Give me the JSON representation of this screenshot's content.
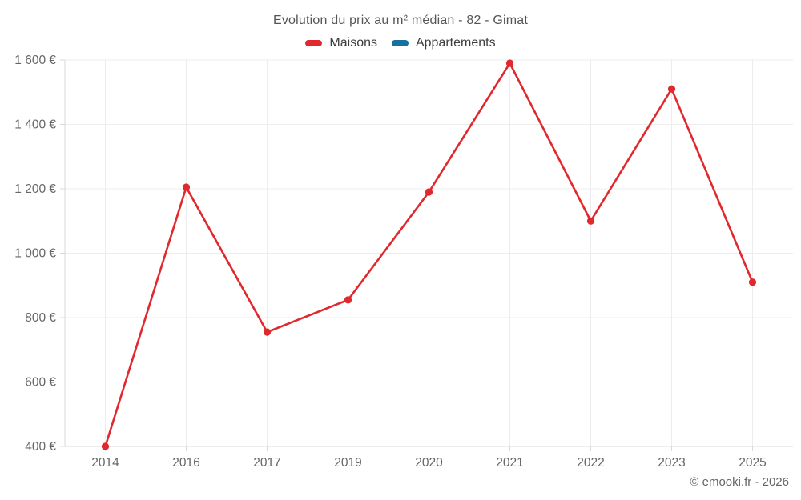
{
  "header": {
    "title": "Evolution du prix au m² médian - 82 - Gimat"
  },
  "legend": {
    "items": [
      {
        "label": "Maisons",
        "color": "#e0282d"
      },
      {
        "label": "Appartements",
        "color": "#17719f"
      }
    ]
  },
  "footer": {
    "credit": "© emooki.fr - 2026"
  },
  "chart_data": {
    "type": "line",
    "title": "Evolution du prix au m² médian - 82 - Gimat",
    "categories": [
      "2014",
      "2016",
      "2017",
      "2019",
      "2020",
      "2021",
      "2022",
      "2023",
      "2025"
    ],
    "series": [
      {
        "name": "Maisons",
        "color": "#e0282d",
        "values": [
          400,
          1205,
          755,
          855,
          1190,
          1590,
          1100,
          1510,
          910
        ]
      },
      {
        "name": "Appartements",
        "color": "#17719f",
        "values": []
      }
    ],
    "ylim": [
      400,
      1600
    ],
    "yticks": [
      400,
      600,
      800,
      1000,
      1200,
      1400,
      1600
    ],
    "ytick_suffix": " €",
    "grid": true,
    "legend_position": "top",
    "colors": {
      "gridline": "#ededed",
      "axis": "#d9d9d9",
      "tick_label": "#666666",
      "title": "#555555",
      "legend_text": "#3d3d3d"
    }
  }
}
